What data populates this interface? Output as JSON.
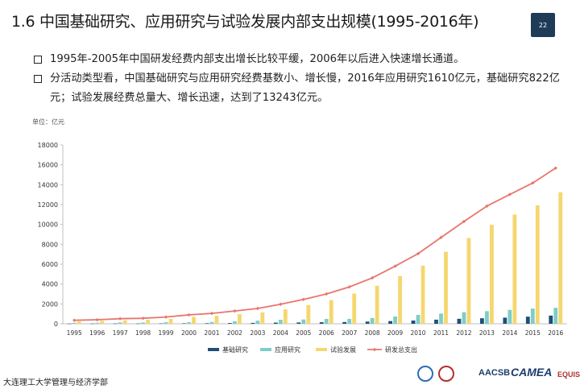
{
  "header": {
    "title": "1.6 中国基础研究、应用研究与试验发展内部支出规模(1995-2016年)",
    "page_number": "22"
  },
  "bullets": [
    "1995年-2005年中国研发经费内部支出增长比较平缓，2006年以后进入快速增长通道。",
    "分活动类型看，中国基础研究与应用研究经费基数小、增长慢，2016年应用研究1610亿元，基础研究822亿元；试验发展经费总量大、增长迅速，达到了13243亿元。"
  ],
  "unit_label": "单位：亿元",
  "footer": {
    "institution": "大连理工大学管理与经济学部",
    "logos": [
      "AACSB",
      "CAMEA",
      "EQUIS"
    ]
  },
  "colors": {
    "basic": "#1f4e79",
    "applied": "#7ecdc8",
    "experimental": "#f5d76e",
    "total": "#e8766d",
    "badge": "#1f3b57"
  },
  "chart_data": {
    "type": "bar",
    "categories": [
      "1995",
      "1996",
      "1997",
      "1998",
      "1999",
      "2000",
      "2001",
      "2002",
      "2003",
      "2004",
      "2005",
      "2006",
      "2007",
      "2008",
      "2009",
      "2010",
      "2011",
      "2012",
      "2013",
      "2014",
      "2015",
      "2016"
    ],
    "series": [
      {
        "name": "基础研究",
        "type": "bar",
        "values": [
          18,
          20,
          27,
          28,
          34,
          46,
          53,
          73,
          87,
          117,
          131,
          155,
          174,
          220,
          270,
          325,
          411,
          499,
          555,
          614,
          716,
          822
        ]
      },
      {
        "name": "应用研究",
        "type": "bar",
        "values": [
          92,
          100,
          133,
          125,
          152,
          152,
          185,
          246,
          311,
          400,
          433,
          489,
          493,
          575,
          730,
          894,
          1028,
          1162,
          1270,
          1399,
          1529,
          1610
        ]
      },
      {
        "name": "试验发展",
        "type": "bar",
        "values": [
          238,
          284,
          350,
          400,
          493,
          698,
          805,
          968,
          1141,
          1449,
          1885,
          2380,
          3041,
          3826,
          4800,
          5845,
          7248,
          8634,
          9968,
          10998,
          11928,
          13243
        ]
      },
      {
        "name": "研发总支出",
        "type": "line",
        "values": [
          349,
          404,
          510,
          551,
          679,
          896,
          1043,
          1288,
          1540,
          1966,
          2450,
          3003,
          3710,
          4616,
          5802,
          7063,
          8687,
          10298,
          11847,
          13016,
          14170,
          15677
        ]
      }
    ],
    "ylim": [
      0,
      18000
    ],
    "yticks": [
      0,
      2000,
      4000,
      6000,
      8000,
      10000,
      12000,
      14000,
      16000,
      18000
    ],
    "legend_position": "bottom",
    "grid": false
  }
}
